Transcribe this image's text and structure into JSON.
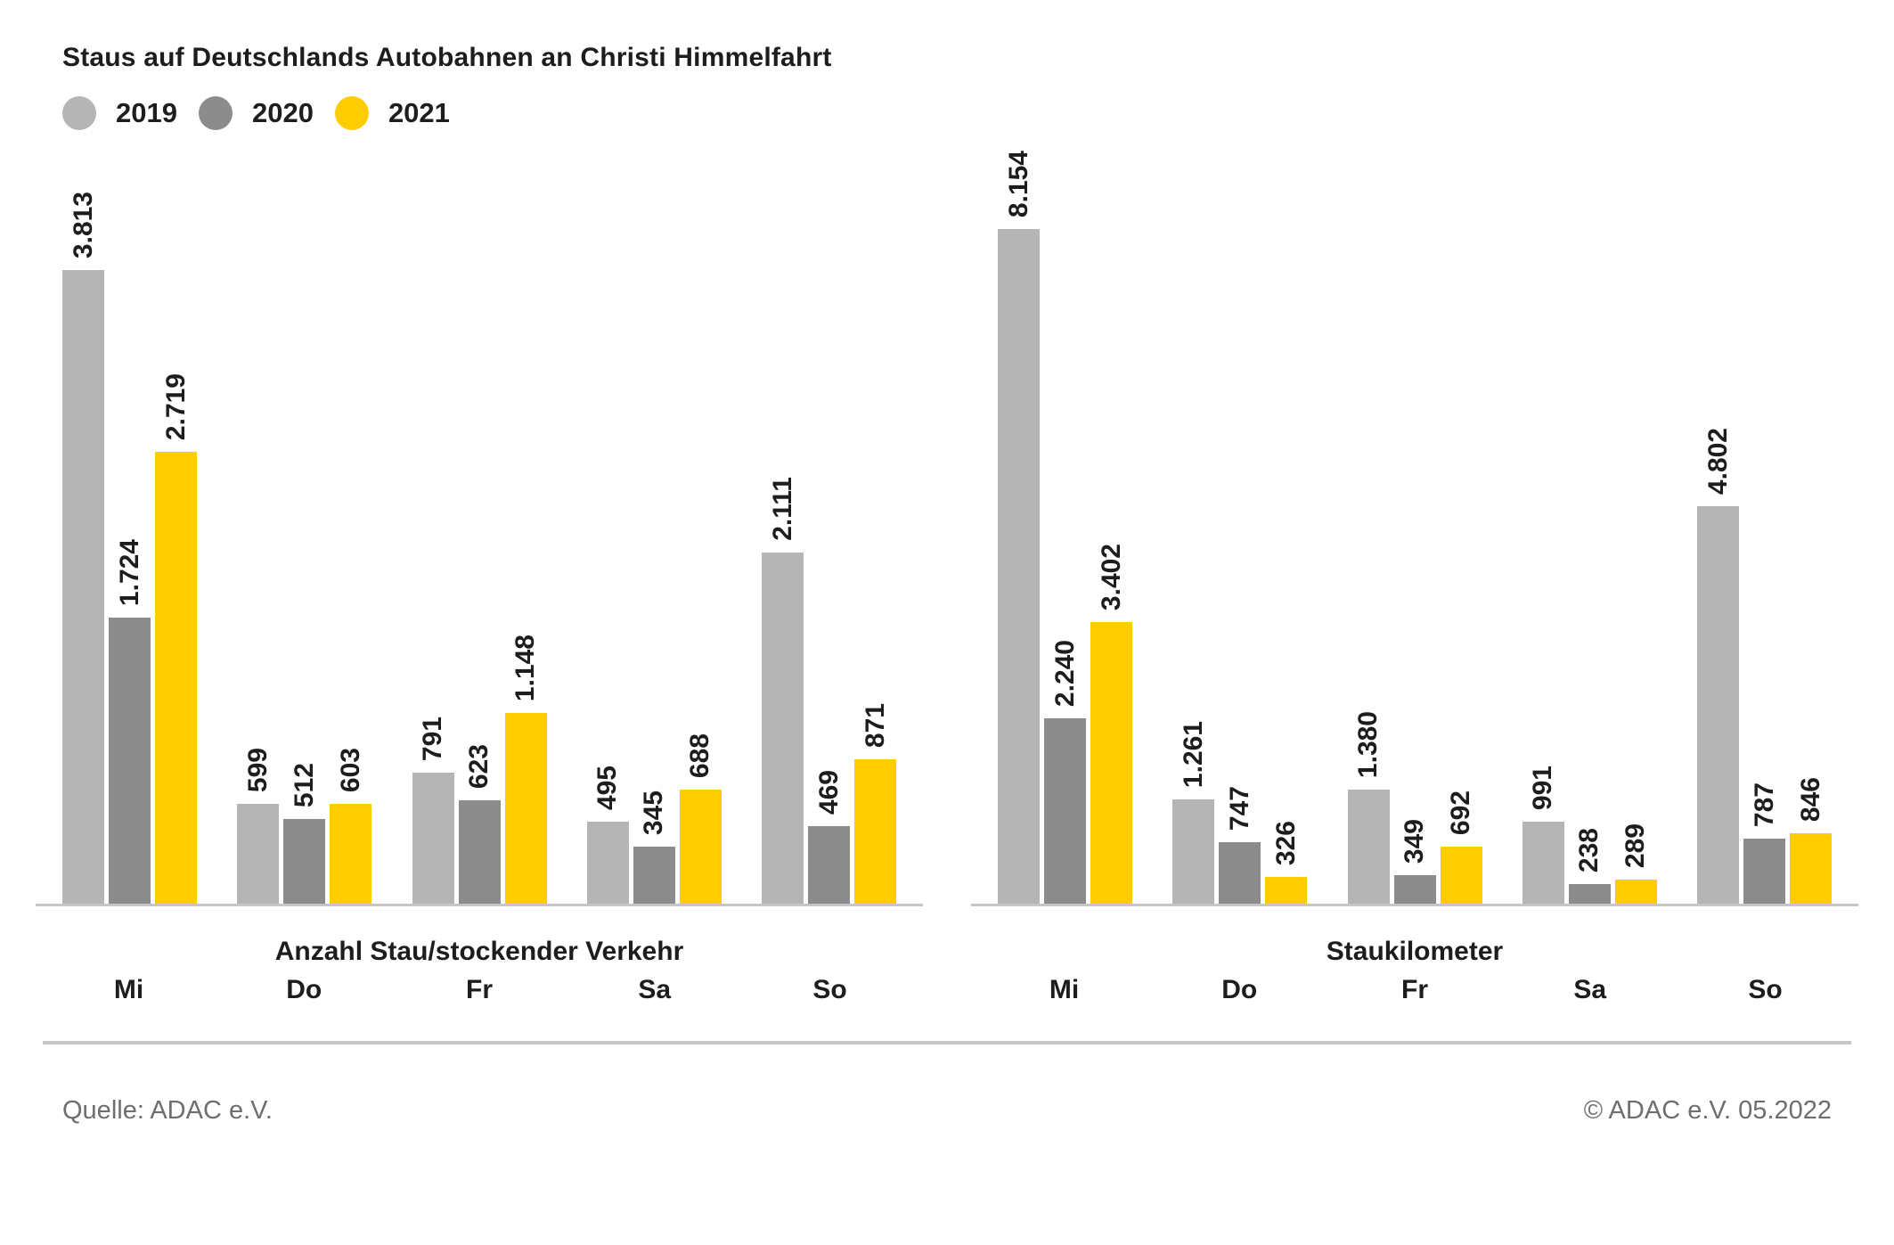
{
  "title": "Staus auf Deutschlands Autobahnen an Christi Himmelfahrt",
  "legend": {
    "items": [
      {
        "label": "2019",
        "color": "#b5b5b5"
      },
      {
        "label": "2020",
        "color": "#8c8c8c"
      },
      {
        "label": "2021",
        "color": "#ffcc00"
      }
    ]
  },
  "chart_data": [
    {
      "type": "bar",
      "title": "Anzahl Stau/stockender Verkehr",
      "categories": [
        "Mi",
        "Do",
        "Fr",
        "Sa",
        "So"
      ],
      "series": [
        {
          "name": "2019",
          "color": "#b5b5b5",
          "values": [
            3813,
            599,
            791,
            495,
            2111
          ]
        },
        {
          "name": "2020",
          "color": "#8c8c8c",
          "values": [
            1724,
            512,
            623,
            345,
            469
          ]
        },
        {
          "name": "2021",
          "color": "#ffcc00",
          "values": [
            2719,
            603,
            1148,
            688,
            871
          ]
        }
      ],
      "value_labels": [
        [
          "3.813",
          "599",
          "791",
          "495",
          "2.111"
        ],
        [
          "1.724",
          "512",
          "623",
          "345",
          "469"
        ],
        [
          "2.719",
          "603",
          "1.148",
          "688",
          "871"
        ]
      ],
      "ylim": [
        0,
        3813
      ],
      "grid": false,
      "legend_position": "top-left",
      "bar_label_rotation": 90
    },
    {
      "type": "bar",
      "title": "Staukilometer",
      "categories": [
        "Mi",
        "Do",
        "Fr",
        "Sa",
        "So"
      ],
      "series": [
        {
          "name": "2019",
          "color": "#b5b5b5",
          "values": [
            8154,
            1261,
            1380,
            991,
            4802
          ]
        },
        {
          "name": "2020",
          "color": "#8c8c8c",
          "values": [
            2240,
            747,
            349,
            238,
            787
          ]
        },
        {
          "name": "2021",
          "color": "#ffcc00",
          "values": [
            3402,
            326,
            692,
            289,
            846
          ]
        }
      ],
      "value_labels": [
        [
          "8.154",
          "1.261",
          "1.380",
          "991",
          "4.802"
        ],
        [
          "2.240",
          "747",
          "349",
          "238",
          "787"
        ],
        [
          "3.402",
          "326",
          "692",
          "289",
          "846"
        ]
      ],
      "ylim": [
        0,
        8154
      ],
      "grid": false,
      "legend_position": "shared-top-left",
      "bar_label_rotation": 90
    }
  ],
  "footer": {
    "source": "Quelle: ADAC e.V.",
    "copyright": "© ADAC e.V. 05.2022"
  }
}
